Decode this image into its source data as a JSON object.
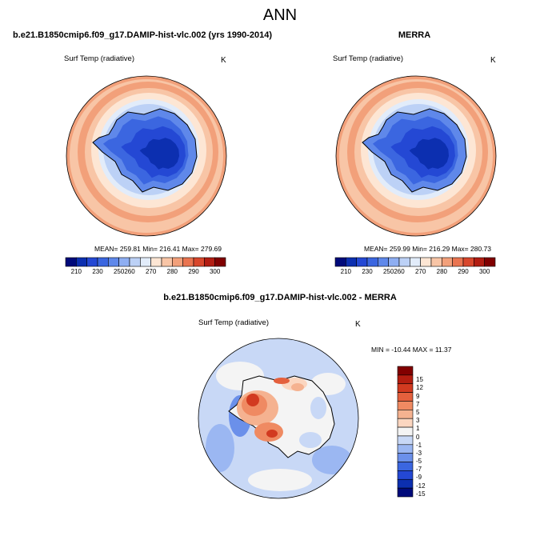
{
  "main_title": "ANN",
  "panels": [
    {
      "title": "b.e21.B1850cmip6.f09_g17.DAMIP-hist-vlc.002 (yrs 1990-2014)",
      "variable": "Surf Temp (radiative)",
      "units": "K",
      "stats": "MEAN= 259.81  Min= 216.41  Max= 279.69"
    },
    {
      "title": "MERRA",
      "variable": "Surf Temp (radiative)",
      "units": "K",
      "stats": "MEAN= 259.99  Min= 216.29  Max= 280.73"
    },
    {
      "title": "b.e21.B1850cmip6.f09_g17.DAMIP-hist-vlc.002 - MERRA",
      "variable": "Surf Temp (radiative)",
      "units": "K",
      "stats": "MIN = -10.44 MAX =  11.37"
    }
  ],
  "abs_colorbar": {
    "colors": [
      "#000a7a",
      "#0c2fb0",
      "#2448d4",
      "#3b66e0",
      "#5f88ea",
      "#8eaef2",
      "#bcd1f6",
      "#e2ecfa",
      "#fde6d4",
      "#f8c5a6",
      "#f2a07a",
      "#e97450",
      "#d8472c",
      "#b21d12",
      "#800000"
    ],
    "labels": [
      "210",
      "230",
      "250",
      "260",
      "270",
      "280",
      "290",
      "300"
    ]
  },
  "diff_colorbar": {
    "colors": [
      "#000a7a",
      "#0c2fb0",
      "#2448d4",
      "#3b66e0",
      "#6b90ea",
      "#9bb7f2",
      "#c8d8f6",
      "#f4f4f4",
      "#fbd6c0",
      "#f5b290",
      "#ef8a62",
      "#e4603d",
      "#d23a20",
      "#b41d10",
      "#820000"
    ],
    "labels": [
      "15",
      "12",
      "9",
      "7",
      "5",
      "3",
      "1",
      "0",
      "-1",
      "-3",
      "-5",
      "-7",
      "-9",
      "-12",
      "-15"
    ]
  }
}
